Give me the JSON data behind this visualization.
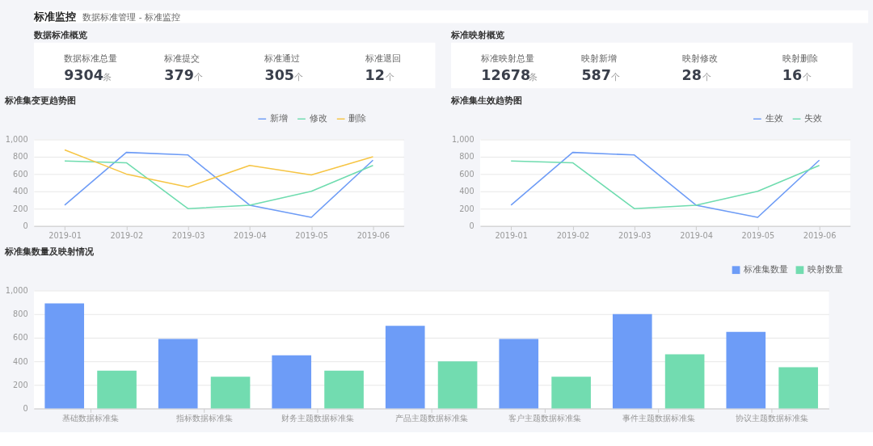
{
  "chart_data": [
    {
      "type": "other",
      "title": "标准监控",
      "subtitle": "数据标准管理 - 标准监控"
    },
    {
      "type": "other",
      "title": "数据标准概览",
      "categories": [
        "数据标准总量",
        "标准提交",
        "标准通过",
        "标准退回"
      ],
      "values": [
        9304,
        379,
        305,
        12
      ],
      "data_labels": true,
      "annotations": [
        "条",
        "个",
        "个",
        "个"
      ]
    },
    {
      "type": "other",
      "title": "标准映射概览",
      "categories": [
        "标准映射总量",
        "映射新增",
        "映射修改",
        "映射删除"
      ],
      "values": [
        12678,
        587,
        28,
        16
      ],
      "data_labels": true,
      "annotations": [
        "条",
        "个",
        "个",
        "个"
      ]
    },
    {
      "type": "line",
      "title": "标准集变更趋势图",
      "categories": [
        "2019-01",
        "2019-02",
        "2019-03",
        "2019-04",
        "2019-05",
        "2019-06"
      ],
      "ylim": [
        0,
        1000
      ],
      "yticks": [
        0,
        200,
        400,
        600,
        800,
        {
          "value": 1000,
          "label": "1,000"
        }
      ],
      "grid": "y",
      "legend": "top right",
      "marker": "none",
      "series": [
        {
          "name": "新增",
          "color": "#6e9cf6",
          "values": [
            240,
            850,
            820,
            240,
            100,
            760
          ]
        },
        {
          "name": "修改",
          "color": "#6fdcaf",
          "values": [
            750,
            730,
            200,
            240,
            400,
            700
          ]
        },
        {
          "name": "删除",
          "color": "#f6c544",
          "values": [
            880,
            600,
            450,
            700,
            590,
            800
          ]
        }
      ]
    },
    {
      "type": "line",
      "title": "标准集生效趋势图",
      "categories": [
        "2019-01",
        "2019-02",
        "2019-03",
        "2019-04",
        "2019-05",
        "2019-06"
      ],
      "ylim": [
        0,
        1000
      ],
      "yticks": [
        0,
        200,
        400,
        600,
        800,
        {
          "value": 1000,
          "label": "1,000"
        }
      ],
      "grid": "y",
      "legend": "top right",
      "marker": "none",
      "series": [
        {
          "name": "生效",
          "color": "#6e9cf6",
          "values": [
            240,
            850,
            820,
            240,
            100,
            760
          ]
        },
        {
          "name": "失效",
          "color": "#6fdcaf",
          "values": [
            750,
            730,
            200,
            240,
            400,
            700
          ]
        }
      ]
    },
    {
      "type": "bar",
      "title": "标准集数量及映射情况",
      "categories": [
        "基础数据标准集",
        "指标数据标准集",
        "财务主题数据标准集",
        "产品主题数据标准集",
        "客户主题数据标准集",
        "事件主题数据标准集",
        "协议主题数据标准集"
      ],
      "ylim": [
        0,
        1000
      ],
      "yticks": [
        0,
        200,
        400,
        600,
        800,
        {
          "value": 1000,
          "label": "1,000"
        }
      ],
      "grid": "y",
      "legend": "top right",
      "series": [
        {
          "name": "标准集数量",
          "color": "#6d9cf7",
          "values": [
            890,
            590,
            450,
            700,
            590,
            800,
            650
          ]
        },
        {
          "name": "映射数量",
          "color": "#72dcb0",
          "values": [
            320,
            270,
            320,
            400,
            270,
            460,
            350
          ]
        }
      ]
    }
  ]
}
